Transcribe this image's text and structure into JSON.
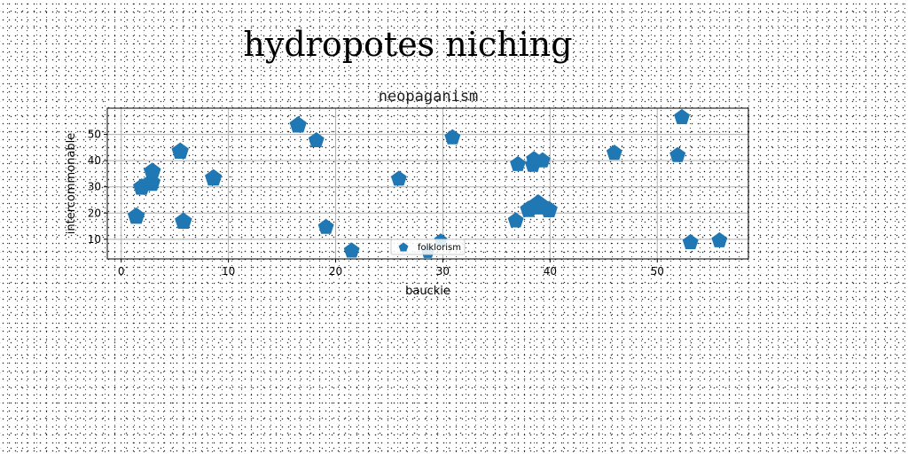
{
  "page": {
    "title": "hydropotes niching"
  },
  "chart_data": {
    "type": "scatter",
    "title": "neopaganism",
    "xlabel": "bauckie",
    "ylabel": "intercommonable",
    "xlim": [
      -1.3,
      58.5
    ],
    "ylim": [
      2.5,
      60
    ],
    "xticks": [
      0,
      10,
      20,
      30,
      40,
      50
    ],
    "yticks": [
      10,
      20,
      30,
      40,
      50
    ],
    "grid": true,
    "legend_position": "lower-center",
    "marker": "pentagon",
    "colors": {
      "series": "#1f77b4"
    },
    "series": [
      {
        "name": "folklorism",
        "points": [
          {
            "x": 1.4,
            "y": 18.7,
            "s": 12
          },
          {
            "x": 1.9,
            "y": 29.8,
            "s": 12
          },
          {
            "x": 2.8,
            "y": 31.5,
            "s": 13
          },
          {
            "x": 2.9,
            "y": 35.8,
            "s": 12
          },
          {
            "x": 5.5,
            "y": 43.5,
            "s": 12
          },
          {
            "x": 5.8,
            "y": 16.8,
            "s": 12
          },
          {
            "x": 8.6,
            "y": 33.3,
            "s": 12
          },
          {
            "x": 16.5,
            "y": 53.5,
            "s": 12
          },
          {
            "x": 18.2,
            "y": 47.7,
            "s": 11
          },
          {
            "x": 19.1,
            "y": 14.6,
            "s": 11
          },
          {
            "x": 21.5,
            "y": 5.6,
            "s": 11
          },
          {
            "x": 25.9,
            "y": 33.0,
            "s": 11
          },
          {
            "x": 28.6,
            "y": 5.0,
            "s": 9
          },
          {
            "x": 29.8,
            "y": 9.6,
            "s": 9
          },
          {
            "x": 30.9,
            "y": 48.8,
            "s": 11
          },
          {
            "x": 36.8,
            "y": 17.1,
            "s": 11
          },
          {
            "x": 37.0,
            "y": 38.6,
            "s": 11
          },
          {
            "x": 38.0,
            "y": 21.3,
            "s": 12
          },
          {
            "x": 38.4,
            "y": 38.3,
            "s": 11
          },
          {
            "x": 38.5,
            "y": 40.5,
            "s": 11
          },
          {
            "x": 38.9,
            "y": 22.9,
            "s": 15
          },
          {
            "x": 39.3,
            "y": 40.0,
            "s": 11
          },
          {
            "x": 39.9,
            "y": 21.2,
            "s": 12
          },
          {
            "x": 46.0,
            "y": 42.9,
            "s": 11
          },
          {
            "x": 51.9,
            "y": 42.0,
            "s": 11
          },
          {
            "x": 52.3,
            "y": 56.5,
            "s": 11
          },
          {
            "x": 53.1,
            "y": 8.8,
            "s": 11
          },
          {
            "x": 55.8,
            "y": 9.5,
            "s": 11
          }
        ]
      }
    ]
  }
}
